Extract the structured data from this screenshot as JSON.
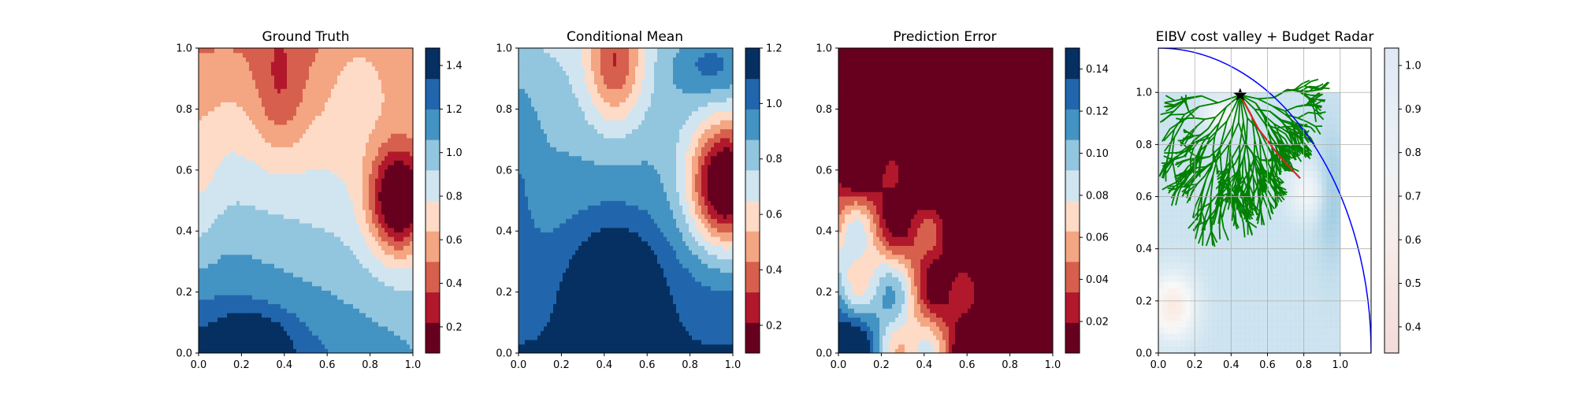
{
  "chart_data": [
    {
      "type": "heatmap",
      "title": "Ground Truth",
      "xlim": [
        0,
        1
      ],
      "ylim": [
        0,
        1
      ],
      "x_ticks": [
        "0.0",
        "0.2",
        "0.4",
        "0.6",
        "0.8",
        "1.0"
      ],
      "y_ticks": [
        "0.0",
        "0.2",
        "0.4",
        "0.6",
        "0.8",
        "1.0"
      ],
      "colormap": "RdBu",
      "colorbar": {
        "range": [
          0.08,
          1.48
        ],
        "levels": 10,
        "ticks": [
          "0.2",
          "0.4",
          "0.6",
          "0.8",
          "1.0",
          "1.2",
          "1.4"
        ]
      },
      "features": [
        {
          "x": 0.93,
          "y": 0.52,
          "value": 0.12,
          "spread": 0.13,
          "desc": "low-value pocket"
        },
        {
          "x": 0.35,
          "y": 0.85,
          "value": 0.65,
          "spread": 0.15,
          "desc": "moderate band"
        },
        {
          "x": 0.25,
          "y": 0.05,
          "value": 1.45,
          "spread": 0.18,
          "desc": "high-value region"
        }
      ]
    },
    {
      "type": "heatmap",
      "title": "Conditional Mean",
      "xlim": [
        0,
        1
      ],
      "ylim": [
        0,
        1
      ],
      "x_ticks": [
        "0.0",
        "0.2",
        "0.4",
        "0.6",
        "0.8",
        "1.0"
      ],
      "y_ticks": [
        "0.0",
        "0.2",
        "0.4",
        "0.6",
        "0.8",
        "1.0"
      ],
      "colormap": "RdBu",
      "colorbar": {
        "range": [
          0.1,
          1.2
        ],
        "levels": 10,
        "ticks": [
          "0.2",
          "0.4",
          "0.6",
          "0.8",
          "1.0",
          "1.2"
        ]
      },
      "features": [
        {
          "x": 0.95,
          "y": 0.55,
          "value": 0.15,
          "spread": 0.12,
          "desc": "low-value pocket"
        },
        {
          "x": 0.45,
          "y": 0.22,
          "value": 1.2,
          "spread": 0.2,
          "desc": "high-value blob"
        }
      ]
    },
    {
      "type": "heatmap",
      "title": "Prediction Error",
      "xlim": [
        0,
        1
      ],
      "ylim": [
        0,
        1
      ],
      "x_ticks": [
        "0.0",
        "0.2",
        "0.4",
        "0.6",
        "0.8",
        "1.0"
      ],
      "y_ticks": [
        "0.0",
        "0.2",
        "0.4",
        "0.6",
        "0.8",
        "1.0"
      ],
      "colormap": "RdBu",
      "colorbar": {
        "range": [
          0.005,
          0.15
        ],
        "levels": 10,
        "ticks": [
          "0.02",
          "0.04",
          "0.06",
          "0.08",
          "0.10",
          "0.12",
          "0.14"
        ]
      },
      "features": [
        {
          "x": 0.0,
          "y": 0.0,
          "value": 0.15,
          "spread": 0.3,
          "desc": "high error corner"
        },
        {
          "x": 0.6,
          "y": 0.55,
          "value": 0.01,
          "spread": 0.35,
          "desc": "low error region"
        }
      ]
    },
    {
      "type": "heatmap",
      "title": "EIBV cost valley + Budget Radar",
      "xlim": [
        0,
        1.17
      ],
      "ylim": [
        0,
        1.17
      ],
      "x_ticks": [
        "0.0",
        "0.2",
        "0.4",
        "0.6",
        "0.8",
        "1.0"
      ],
      "y_ticks": [
        "0.0",
        "0.2",
        "0.4",
        "0.6",
        "0.8",
        "1.0"
      ],
      "colormap": "RdBu",
      "grid": true,
      "colorbar": {
        "range": [
          0.34,
          1.04
        ],
        "ticks": [
          "0.4",
          "0.5",
          "0.6",
          "0.7",
          "0.8",
          "0.9",
          "1.0"
        ]
      },
      "start_point": {
        "x": 0.45,
        "y": 0.99
      },
      "budget_arc": {
        "center_x": 0.0,
        "center_y": 0.0,
        "radius": 1.17,
        "color": "#0000ff"
      },
      "planned_path": {
        "color": "#d62728",
        "points": [
          [
            0.45,
            0.99
          ],
          [
            0.55,
            0.86
          ],
          [
            0.66,
            0.76
          ],
          [
            0.78,
            0.67
          ]
        ]
      },
      "tree_color": "#008000"
    }
  ]
}
